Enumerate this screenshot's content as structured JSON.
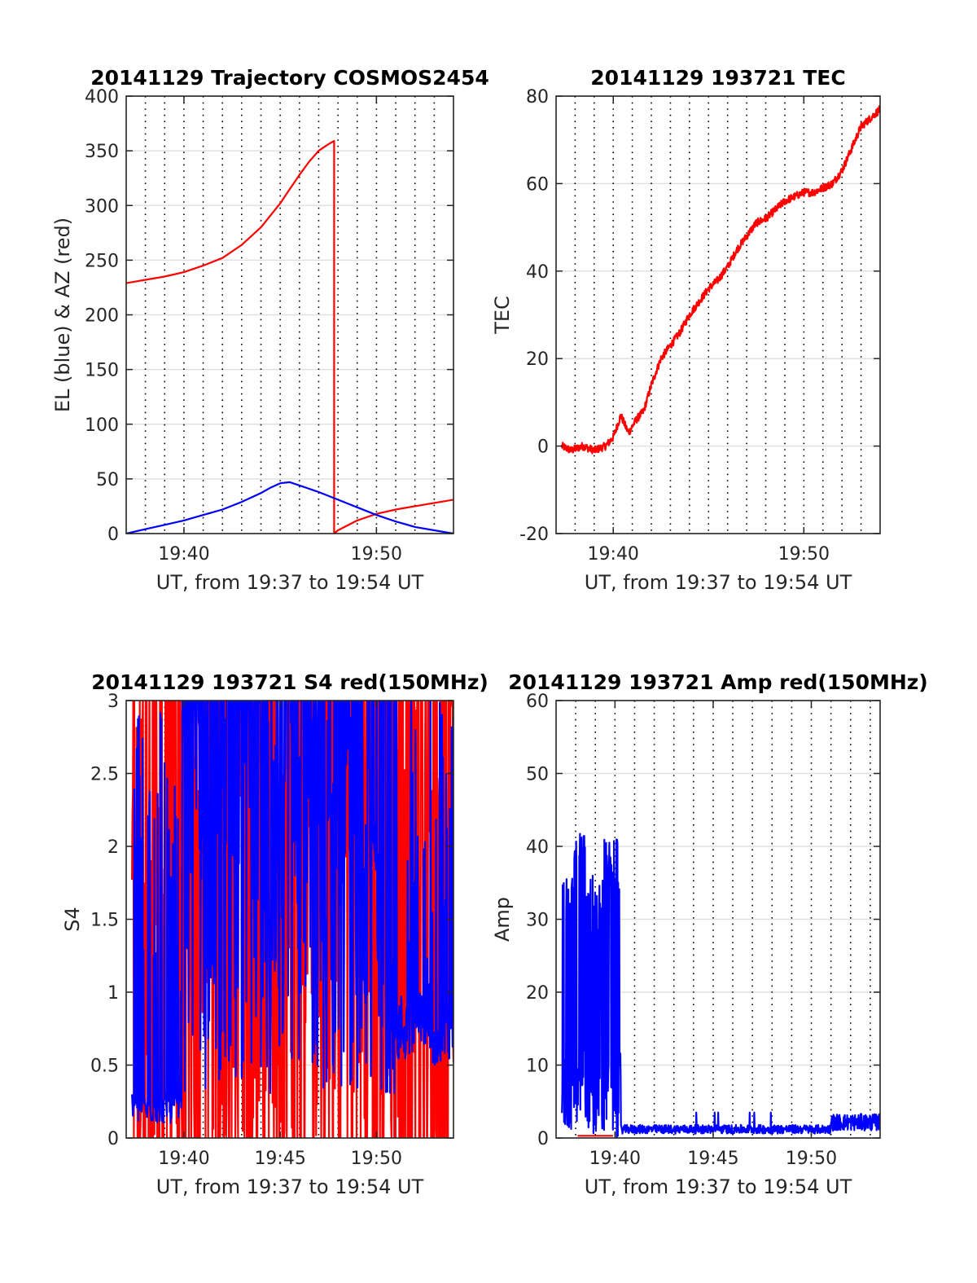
{
  "chart_data": [
    {
      "type": "line",
      "title": "20141129 Trajectory COSMOS2454",
      "xlabel": "UT, from 19:37 to 19:54 UT",
      "ylabel": "EL (blue) & AZ (red)",
      "xlim": [
        19.6167,
        19.9
      ],
      "ylim": [
        0,
        400
      ],
      "grid": "dotted vertical every minute, solid horizontal at y ticks",
      "xticks": [
        {
          "value": 19.6667,
          "label": "19:40"
        },
        {
          "value": 19.8333,
          "label": "19:50"
        }
      ],
      "yticks": [
        {
          "value": 0,
          "label": "0"
        },
        {
          "value": 50,
          "label": "50"
        },
        {
          "value": 100,
          "label": "100"
        },
        {
          "value": 150,
          "label": "150"
        },
        {
          "value": 200,
          "label": "200"
        },
        {
          "value": 250,
          "label": "250"
        },
        {
          "value": 300,
          "label": "300"
        },
        {
          "value": 350,
          "label": "350"
        },
        {
          "value": 400,
          "label": "400"
        }
      ],
      "series": [
        {
          "color": "#ff0000",
          "x": [
            19.6167,
            19.6333,
            19.65,
            19.6667,
            19.6833,
            19.7,
            19.7167,
            19.7333,
            19.75,
            19.7583,
            19.7667,
            19.775,
            19.7833,
            19.7917,
            19.7967,
            19.7967,
            19.8,
            19.8167,
            19.8333,
            19.85,
            19.8667,
            19.8833,
            19.9
          ],
          "y": [
            229,
            232,
            235,
            239,
            245,
            252,
            264,
            280,
            302,
            315,
            328,
            340,
            350,
            356,
            359,
            0,
            3,
            12,
            18,
            22,
            25,
            28,
            31
          ]
        },
        {
          "color": "#0000ff",
          "x": [
            19.6167,
            19.6333,
            19.65,
            19.6667,
            19.6833,
            19.7,
            19.7167,
            19.7333,
            19.7417,
            19.75,
            19.7583,
            19.7667,
            19.7833,
            19.8,
            19.8167,
            19.8333,
            19.85,
            19.8667,
            19.8833,
            19.9
          ],
          "y": [
            0,
            4,
            8,
            12,
            17,
            22,
            29,
            37,
            42,
            46,
            47,
            44,
            38,
            31,
            24,
            17,
            11,
            6,
            3,
            0
          ]
        }
      ]
    },
    {
      "type": "line",
      "title": "20141129 193721 TEC",
      "xlabel": "UT, from 19:37 to 19:54 UT",
      "ylabel": "TEC",
      "xlim": [
        19.6167,
        19.9
      ],
      "ylim": [
        -20,
        80
      ],
      "grid": "dotted vertical every minute, solid horizontal at y ticks",
      "xticks": [
        {
          "value": 19.6667,
          "label": "19:40"
        },
        {
          "value": 19.8333,
          "label": "19:50"
        }
      ],
      "yticks": [
        {
          "value": -20,
          "label": "-20"
        },
        {
          "value": 0,
          "label": "0"
        },
        {
          "value": 20,
          "label": "20"
        },
        {
          "value": 40,
          "label": "40"
        },
        {
          "value": 60,
          "label": "60"
        },
        {
          "value": 80,
          "label": "80"
        }
      ],
      "series": [
        {
          "color": "#ff0000",
          "x": [
            19.6217,
            19.63,
            19.64,
            19.65,
            19.66,
            19.6667,
            19.6733,
            19.68,
            19.6867,
            19.6933,
            19.7,
            19.7083,
            19.7167,
            19.725,
            19.7333,
            19.7417,
            19.75,
            19.7583,
            19.7667,
            19.775,
            19.7833,
            19.7917,
            19.8,
            19.8083,
            19.8167,
            19.825,
            19.8333,
            19.8417,
            19.85,
            19.8583,
            19.8667,
            19.875,
            19.8833,
            19.8917,
            19.9
          ],
          "y": [
            0,
            -1,
            0,
            -1,
            0,
            2,
            7,
            3,
            6,
            8,
            14,
            20,
            23,
            26,
            30,
            33,
            36,
            38,
            41,
            45,
            48,
            51,
            52,
            54,
            56,
            57,
            58,
            58,
            59,
            60,
            63,
            68,
            73,
            75,
            77
          ]
        }
      ]
    },
    {
      "type": "line",
      "title": "20141129 193721 S4 red(150MHz)",
      "xlabel": "UT, from 19:37 to 19:54 UT",
      "ylabel": "S4",
      "xlim": [
        19.6167,
        19.9
      ],
      "ylim": [
        0,
        3
      ],
      "grid": "dotted vertical every minute, solid horizontal at y ticks",
      "xticks": [
        {
          "value": 19.6667,
          "label": "19:40"
        },
        {
          "value": 19.75,
          "label": "19:45"
        },
        {
          "value": 19.8333,
          "label": "19:50"
        }
      ],
      "yticks": [
        {
          "value": 0,
          "label": "0"
        },
        {
          "value": 0.5,
          "label": "0.5"
        },
        {
          "value": 1,
          "label": "1"
        },
        {
          "value": 1.5,
          "label": "1.5"
        },
        {
          "value": 2,
          "label": "2"
        },
        {
          "value": 2.5,
          "label": "2.5"
        },
        {
          "value": 3,
          "label": "3"
        }
      ],
      "series": [
        {
          "color": "#ff0000",
          "note": "noisy trace spanning 0 to 3 across the window"
        },
        {
          "color": "#0000ff",
          "note": "noisy trace, mostly 0.1-0.3 before 19:40 and 0.5-1.0 after 19:51, saturating at 3 in between"
        }
      ]
    },
    {
      "type": "line",
      "title": "20141129 193721 Amp red(150MHz)",
      "xlabel": "UT, from 19:37 to 19:54 UT",
      "ylabel": "Amp",
      "xlim": [
        19.6167,
        19.8917
      ],
      "ylim": [
        0,
        60
      ],
      "grid": "dotted vertical every minute, solid horizontal at y ticks",
      "xticks": [
        {
          "value": 19.6667,
          "label": "19:40"
        },
        {
          "value": 19.75,
          "label": "19:45"
        },
        {
          "value": 19.8333,
          "label": "19:50"
        }
      ],
      "yticks": [
        {
          "value": 0,
          "label": "0"
        },
        {
          "value": 10,
          "label": "10"
        },
        {
          "value": 20,
          "label": "20"
        },
        {
          "value": 30,
          "label": "30"
        },
        {
          "value": 40,
          "label": "40"
        },
        {
          "value": 50,
          "label": "50"
        },
        {
          "value": 60,
          "label": "60"
        }
      ],
      "series": [
        {
          "color": "#0000ff",
          "note": "bursts 20-44 from 19:37 to 19:40, then about 1, rising to about 2 after 19:51"
        },
        {
          "color": "#ff0000",
          "note": "near zero"
        }
      ]
    }
  ]
}
